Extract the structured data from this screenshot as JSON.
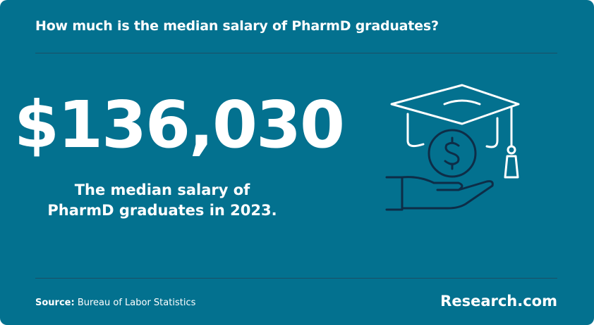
{
  "header": {
    "title": "How much is the median salary of PharmD graduates?"
  },
  "stat": {
    "value": "$136,030",
    "description": "The median salary of PharmD graduates in 2023."
  },
  "footer": {
    "source_label": "Source:",
    "source": "Bureau of Labor Statistics",
    "brand": "Research.com"
  }
}
